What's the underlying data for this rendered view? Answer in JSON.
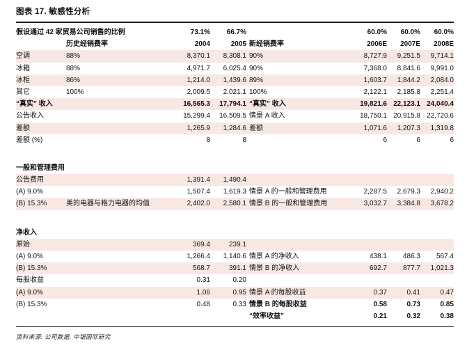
{
  "page": {
    "title": "图表 17. 敏感性分析",
    "source": "资料来源: 公司数据, 中银国际研究"
  },
  "colors": {
    "stripe_pink": "#f8e8e4",
    "rule_black": "#1c1c1c"
  },
  "table": {
    "header_rows": [
      {
        "cells": [
          "假设通过 42 家贸易公司销售的比例",
          "",
          "73.1%",
          "66.7%",
          "",
          "60.0%",
          "60.0%",
          "60.0%"
        ]
      },
      {
        "cells": [
          "",
          "历史经销费率",
          "2004",
          "2005",
          "新经销费率",
          "2006E",
          "2007E",
          "2008E"
        ]
      }
    ],
    "sections": [
      {
        "heading": "",
        "rows": [
          {
            "cells": [
              "空调",
              "88%",
              "8,370.1",
              "8,308.1",
              "90%",
              "8,727.9",
              "9,251.5",
              "9,714.1"
            ],
            "stripe": true
          },
          {
            "cells": [
              "冰箱",
              "88%",
              "4,971.7",
              "6,025.4",
              "90%",
              "7,368.0",
              "8,841.6",
              "9,991.0"
            ],
            "stripe": false
          },
          {
            "cells": [
              "冰柜",
              "86%",
              "1,214.0",
              "1,439.6",
              "89%",
              "1,603.7",
              "1,844.2",
              "2,084.0"
            ],
            "stripe": true
          },
          {
            "cells": [
              "其它",
              "100%",
              "2,009.5",
              "2,021.1",
              "100%",
              "2,122.1",
              "2,185.8",
              "2,251.4"
            ],
            "stripe": false
          },
          {
            "cells": [
              "“真实” 收入",
              "",
              "16,565.3",
              "17,794.1",
              "“真实” 收入",
              "19,821.6",
              "22,123.1",
              "24,040.4"
            ],
            "stripe": true,
            "bold": true
          },
          {
            "cells": [
              "公告收入",
              "",
              "15,299.4",
              "16,509.5",
              "情景 A 收入",
              "18,750.1",
              "20,915.8",
              "22,720.6"
            ],
            "stripe": false
          },
          {
            "cells": [
              "差额",
              "",
              "1,265.9",
              "1,284.6",
              "差额",
              "1,071.6",
              "1,207.3",
              "1,319.8"
            ],
            "stripe": true
          },
          {
            "cells": [
              "差额 (%)",
              "",
              "8",
              "8",
              "",
              "6",
              "6",
              "6"
            ],
            "stripe": false
          }
        ]
      },
      {
        "heading": "一般和管理费用",
        "rows": [
          {
            "cells": [
              "公告费用",
              "",
              "1,391.4",
              "1,490.4",
              "",
              "",
              "",
              ""
            ],
            "stripe": true
          },
          {
            "cells": [
              "(A) 9.0%",
              "",
              "1,507.4",
              "1,619.3",
              "情景 A 的一般和管理费用",
              "2,287.5",
              "2,679.3",
              "2,940.2"
            ],
            "stripe": false
          },
          {
            "cells": [
              "(B) 15.3%",
              "美的电器与格力电器的均值",
              "2,402.0",
              "2,580.1",
              "情景 B 的一般和管理费用",
              "3,032.7",
              "3,384.8",
              "3,678.2"
            ],
            "stripe": true
          }
        ]
      },
      {
        "heading": "净收入",
        "rows": [
          {
            "cells": [
              "原始",
              "",
              "369.4",
              "239.1",
              "",
              "",
              "",
              ""
            ],
            "stripe": true
          },
          {
            "cells": [
              "(A) 9.0%",
              "",
              "1,266.4",
              "1,140.6",
              "情景 A 的净收入",
              "438.1",
              "486.3",
              "567.4"
            ],
            "stripe": false
          },
          {
            "cells": [
              "(B) 15.3%",
              "",
              "568.7",
              "391.1",
              "情景 B 的净收入",
              "692.7",
              "877.7",
              "1,021.3"
            ],
            "stripe": true
          },
          {
            "cells": [
              "每股收益",
              "",
              "0.31",
              "0.20",
              "",
              "",
              "",
              ""
            ],
            "stripe": false
          },
          {
            "cells": [
              "(A) 9.0%",
              "",
              "1.06",
              "0.95",
              "情景 A 的每股收益",
              "0.37",
              "0.41",
              "0.47"
            ],
            "stripe": true
          },
          {
            "cells": [
              "(B) 15.3%",
              "",
              "0.48",
              "0.33",
              "情景 B 的每股收益",
              "0.58",
              "0.73",
              "0.85"
            ],
            "stripe": false,
            "boldRight": true
          },
          {
            "cells": [
              "",
              "",
              "",
              "",
              "“效率收益”",
              "0.21",
              "0.32",
              "0.38"
            ],
            "stripe": false,
            "boldRight": true
          }
        ]
      }
    ]
  }
}
